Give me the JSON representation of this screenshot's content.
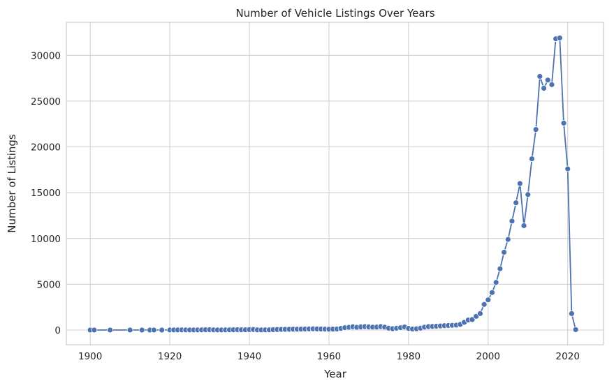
{
  "chart_data": {
    "type": "line",
    "title": "Number of Vehicle Listings Over Years",
    "xlabel": "Year",
    "ylabel": "Number of Listings",
    "xlim": [
      1894,
      2029
    ],
    "ylim": [
      -1600,
      33600
    ],
    "xticks": [
      1900,
      1920,
      1940,
      1960,
      1980,
      2000,
      2020
    ],
    "yticks": [
      0,
      5000,
      10000,
      15000,
      20000,
      25000,
      30000
    ],
    "grid": true,
    "marker": "circle",
    "color": "#4c72b0",
    "series": [
      {
        "x": [
          1900,
          1901,
          1905,
          1910,
          1913,
          1915,
          1916,
          1918,
          1920,
          1921,
          1922,
          1923,
          1924,
          1925,
          1926,
          1927,
          1928,
          1929,
          1930,
          1931,
          1932,
          1933,
          1934,
          1935,
          1936,
          1937,
          1938,
          1939,
          1940,
          1941,
          1942,
          1943,
          1944,
          1945,
          1946,
          1947,
          1948,
          1949,
          1950,
          1951,
          1952,
          1953,
          1954,
          1955,
          1956,
          1957,
          1958,
          1959,
          1960,
          1961,
          1962,
          1963,
          1964,
          1965,
          1966,
          1967,
          1968,
          1969,
          1970,
          1971,
          1972,
          1973,
          1974,
          1975,
          1976,
          1977,
          1978,
          1979,
          1980,
          1981,
          1982,
          1983,
          1984,
          1985,
          1986,
          1987,
          1988,
          1989,
          1990,
          1991,
          1992,
          1993,
          1994,
          1995,
          1996,
          1997,
          1998,
          1999,
          2000,
          2001,
          2002,
          2003,
          2004,
          2005,
          2006,
          2007,
          2008,
          2009,
          2010,
          2011,
          2012,
          2013,
          2014,
          2015,
          2016,
          2017,
          2018,
          2019,
          2020,
          2021,
          2022
        ],
        "y": [
          5,
          5,
          5,
          5,
          5,
          5,
          5,
          5,
          10,
          15,
          15,
          20,
          15,
          15,
          15,
          15,
          20,
          30,
          40,
          20,
          15,
          15,
          20,
          25,
          30,
          40,
          30,
          35,
          50,
          60,
          20,
          15,
          20,
          25,
          40,
          60,
          70,
          80,
          90,
          100,
          100,
          110,
          120,
          130,
          140,
          130,
          120,
          110,
          100,
          110,
          120,
          180,
          260,
          300,
          360,
          300,
          350,
          380,
          350,
          320,
          330,
          380,
          320,
          200,
          150,
          200,
          260,
          340,
          180,
          120,
          140,
          200,
          320,
          380,
          400,
          420,
          450,
          480,
          500,
          520,
          540,
          620,
          850,
          1100,
          1150,
          1500,
          1800,
          2800,
          3300,
          4100,
          5200,
          6700,
          8500,
          9900,
          11900,
          13900,
          16000,
          11400,
          14800,
          18700,
          21900,
          27700,
          26400,
          27300,
          26800,
          31800,
          31900,
          22600,
          17600,
          1800,
          50
        ]
      }
    ]
  }
}
